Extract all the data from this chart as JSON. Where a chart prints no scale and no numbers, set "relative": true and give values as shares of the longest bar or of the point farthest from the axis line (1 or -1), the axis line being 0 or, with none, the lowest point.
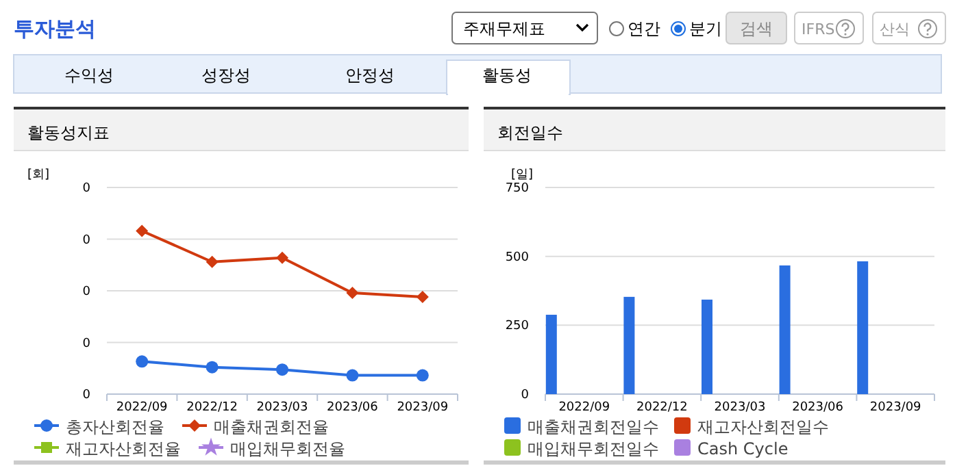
{
  "chart_data": [
    {
      "type": "other",
      "title": "투자분석",
      "annotations": [
        "주재무제표",
        "연간",
        "분기",
        "검색",
        "IFRS",
        "산식",
        "수익성",
        "성장성",
        "안정성",
        "활동성"
      ]
    },
    {
      "type": "line",
      "title": "활동성지표",
      "ylabel": "[회]",
      "relative": true,
      "annotations": [
        "0",
        "0",
        "0",
        "0",
        "0"
      ],
      "categories": [
        "2022/09",
        "2022/12",
        "2023/03",
        "2023/06",
        "2023/09"
      ],
      "grid": "y",
      "legend": "bottom",
      "series": [
        {
          "name": "총자산회전율",
          "color": "#2a6ee0",
          "marker": "circle",
          "values": [
            0.2,
            0.165,
            0.15,
            0.115,
            0.115
          ]
        },
        {
          "name": "매출채권회전율",
          "color": "#d13a0f",
          "marker": "diamond",
          "values": [
            1,
            0.81,
            0.835,
            0.62,
            0.595
          ]
        },
        {
          "name": "재고자산회전율",
          "color": "#8dc21f",
          "marker": "square",
          "values": [
            null,
            null,
            null,
            null,
            null
          ]
        },
        {
          "name": "매입채무회전율",
          "color": "#a980e0",
          "marker": "star",
          "values": [
            null,
            null,
            null,
            null,
            null
          ]
        }
      ]
    },
    {
      "type": "bar",
      "title": "회전일수",
      "ylabel": "[일]",
      "categories": [
        "2022/09",
        "2022/12",
        "2023/03",
        "2023/06",
        "2023/09"
      ],
      "ylim": [
        0,
        750
      ],
      "yticks": [
        0,
        250,
        500,
        750
      ],
      "grid": "y",
      "legend": "bottom",
      "series": [
        {
          "name": "매출채권회전일수",
          "color": "#2a6ee0",
          "values": [
            288,
            353,
            343,
            467,
            482
          ]
        },
        {
          "name": "재고자산회전일수",
          "color": "#d13a0f",
          "values": [
            null,
            null,
            null,
            null,
            null
          ]
        },
        {
          "name": "매입채무회전일수",
          "color": "#8dc21f",
          "values": [
            null,
            null,
            null,
            null,
            null
          ]
        },
        {
          "name": "Cash Cycle",
          "color": "#a980e0",
          "values": [
            null,
            null,
            null,
            null,
            null
          ]
        }
      ]
    }
  ]
}
